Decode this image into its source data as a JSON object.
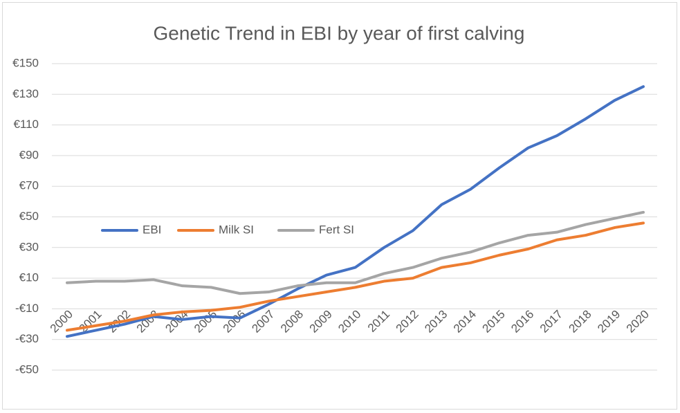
{
  "chart_data": {
    "type": "line",
    "title": "Genetic Trend in EBI by year of first calving",
    "categories": [
      "2000",
      "2001",
      "2002",
      "2003",
      "2004",
      "2005",
      "2006",
      "2007",
      "2008",
      "2009",
      "2010",
      "2011",
      "2012",
      "2013",
      "2014",
      "2015",
      "2016",
      "2017",
      "2018",
      "2019",
      "2020"
    ],
    "series": [
      {
        "name": "EBI",
        "color": "#4472c4",
        "values": [
          -28,
          -24,
          -20,
          -15,
          -17,
          -15,
          -16,
          -7,
          3,
          12,
          17,
          30,
          41,
          58,
          68,
          82,
          95,
          103,
          114,
          126,
          135
        ]
      },
      {
        "name": "Milk SI",
        "color": "#ed7d31",
        "values": [
          -24,
          -21,
          -18,
          -14,
          -12,
          -11,
          -9,
          -5,
          -2,
          1,
          4,
          8,
          10,
          17,
          20,
          25,
          29,
          35,
          38,
          43,
          46
        ]
      },
      {
        "name": "Fert SI",
        "color": "#a5a5a5",
        "values": [
          7,
          8,
          8,
          9,
          5,
          4,
          0,
          1,
          5,
          7,
          7,
          13,
          17,
          23,
          27,
          33,
          38,
          40,
          45,
          49,
          53
        ]
      }
    ],
    "ylim": [
      -50,
      150
    ],
    "yticks": [
      {
        "value": -50,
        "label": "-€50"
      },
      {
        "value": -30,
        "label": "-€30"
      },
      {
        "value": -10,
        "label": "-€10"
      },
      {
        "value": 10,
        "label": "€10"
      },
      {
        "value": 30,
        "label": "€30"
      },
      {
        "value": 50,
        "label": "€50"
      },
      {
        "value": 70,
        "label": "€70"
      },
      {
        "value": 90,
        "label": "€90"
      },
      {
        "value": 110,
        "label": "€110"
      },
      {
        "value": 130,
        "label": "€130"
      },
      {
        "value": 150,
        "label": "€150"
      }
    ],
    "grid": true,
    "legend": "left"
  }
}
